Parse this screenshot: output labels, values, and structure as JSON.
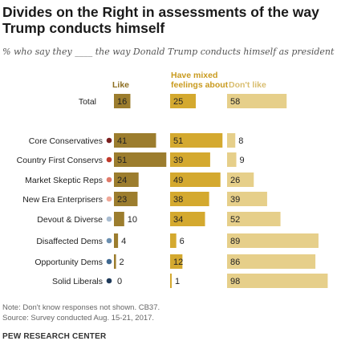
{
  "title": "Divides on the Right in assessments of the way Trump conducts himself",
  "subtitle": "% who say they ____ the way Donald Trump conducts himself as president",
  "columns": {
    "like": "Like",
    "mixed": "Have mixed feelings about",
    "dislike": "Don't like"
  },
  "colors": {
    "like_total": "#9c7d2e",
    "mixed": "#d4a92f",
    "dislike": "#e6cf8a",
    "like_header": "#8c6d1f",
    "mixed_header": "#c99a1e",
    "dislike_header": "#d9bd6e"
  },
  "note": "Note: Don't know responses not shown. CB37.",
  "source_note": "Source: Survey conducted Aug. 15-21, 2017.",
  "org": "PEW RESEARCH CENTER",
  "chart_data": {
    "type": "bar",
    "categories": [
      "Total",
      "Core Conservatives",
      "Country First Conservs",
      "Market Skeptic Reps",
      "New Era Enterprisers",
      "Devout & Diverse",
      "Disaffected Dems",
      "Opportunity Dems",
      "Solid Liberals"
    ],
    "dot_colors": [
      "",
      "#7a1f1f",
      "#c0392b",
      "#e07a6a",
      "#f0a898",
      "#a9bcd0",
      "#6b8fb0",
      "#3f6890",
      "#1f3a5a"
    ],
    "series": [
      {
        "name": "Like",
        "values": [
          16,
          41,
          51,
          24,
          23,
          10,
          4,
          2,
          0
        ]
      },
      {
        "name": "Have mixed feelings about",
        "values": [
          25,
          51,
          39,
          49,
          38,
          34,
          6,
          12,
          1
        ]
      },
      {
        "name": "Don't like",
        "values": [
          58,
          8,
          9,
          26,
          39,
          52,
          89,
          86,
          98
        ]
      }
    ]
  }
}
